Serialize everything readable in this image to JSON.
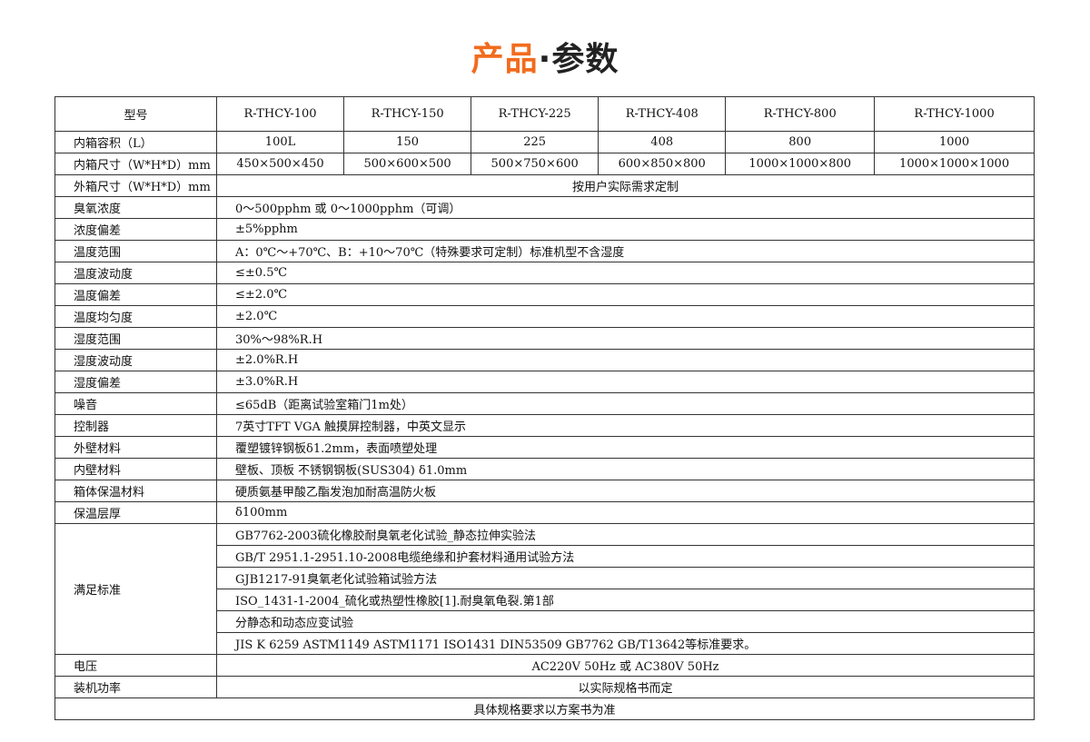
{
  "title": {
    "part1": "产品",
    "part2": "·参数"
  },
  "header": {
    "label": "型号",
    "models": [
      "R-THCY-100",
      "R-THCY-150",
      "R-THCY-225",
      "R-THCY-408",
      "R-THCY-800",
      "R-THCY-1000"
    ]
  },
  "volume": {
    "label": "内箱容积（L）",
    "values": [
      "100L",
      "150",
      "225",
      "408",
      "800",
      "1000"
    ]
  },
  "inner_size": {
    "label": "内箱尺寸（W*H*D）mm",
    "values": [
      "450×500×450",
      "500×600×500",
      "500×750×600",
      "600×850×800",
      "1000×1000×800",
      "1000×1000×1000"
    ]
  },
  "rows": [
    {
      "label": "外箱尺寸（W*H*D）mm",
      "value": "按用户实际需求定制",
      "center": true
    },
    {
      "label": "臭氧浓度",
      "value": "0～500pphm 或 0～1000pphm（可调）"
    },
    {
      "label": "浓度偏差",
      "value": "±5%pphm"
    },
    {
      "label": "温度范围",
      "value": "A：0℃～+70℃、B：+10～70℃（特殊要求可定制）标准机型不含湿度"
    },
    {
      "label": "温度波动度",
      "value": "≤±0.5℃"
    },
    {
      "label": "温度偏差",
      "value": "≤±2.0℃"
    },
    {
      "label": "温度均匀度",
      "value": "±2.0℃"
    },
    {
      "label": "湿度范围",
      "value": "30%～98%R.H"
    },
    {
      "label": "湿度波动度",
      "value": "±2.0%R.H"
    },
    {
      "label": "湿度偏差",
      "value": "±3.0%R.H"
    },
    {
      "label": "噪音",
      "value": "≤65dB（距离试验室箱门1m处）"
    },
    {
      "label": "控制器",
      "value": "7英寸TFT VGA  触摸屏控制器，中英文显示"
    },
    {
      "label": "外壁材料",
      "value": "覆塑镀锌钢板δ1.2mm，表面喷塑处理"
    },
    {
      "label": "内壁材料",
      "value": "壁板、顶板 不锈钢钢板(SUS304)  δ1.0mm"
    },
    {
      "label": "箱体保温材料",
      "value": "硬质氨基甲酸乙酯发泡加耐高温防火板"
    },
    {
      "label": "保温层厚",
      "value": "δ100mm"
    }
  ],
  "standards": {
    "label": "满足标准",
    "items": [
      "GB7762-2003硫化橡胶耐臭氧老化试验_静态拉伸实验法",
      "GB/T 2951.1-2951.10-2008电缆绝缘和护套材料通用试验方法",
      "GJB1217-91臭氧老化试验箱试验方法",
      "ISO_1431-1-2004_硫化或热塑性橡胶[1].耐臭氧龟裂.第1部",
      "分静态和动态应变试验",
      "JIS K 6259  ASTM1149  ASTM1171  ISO1431 DIN53509   GB7762  GB/T13642等标准要求。"
    ]
  },
  "voltage": {
    "label": "电压",
    "value": "AC220V 50Hz 或 AC380V 50Hz"
  },
  "power": {
    "label": "装机功率",
    "value": "以实际规格书而定"
  },
  "footer": "具体规格要求以方案书为准"
}
